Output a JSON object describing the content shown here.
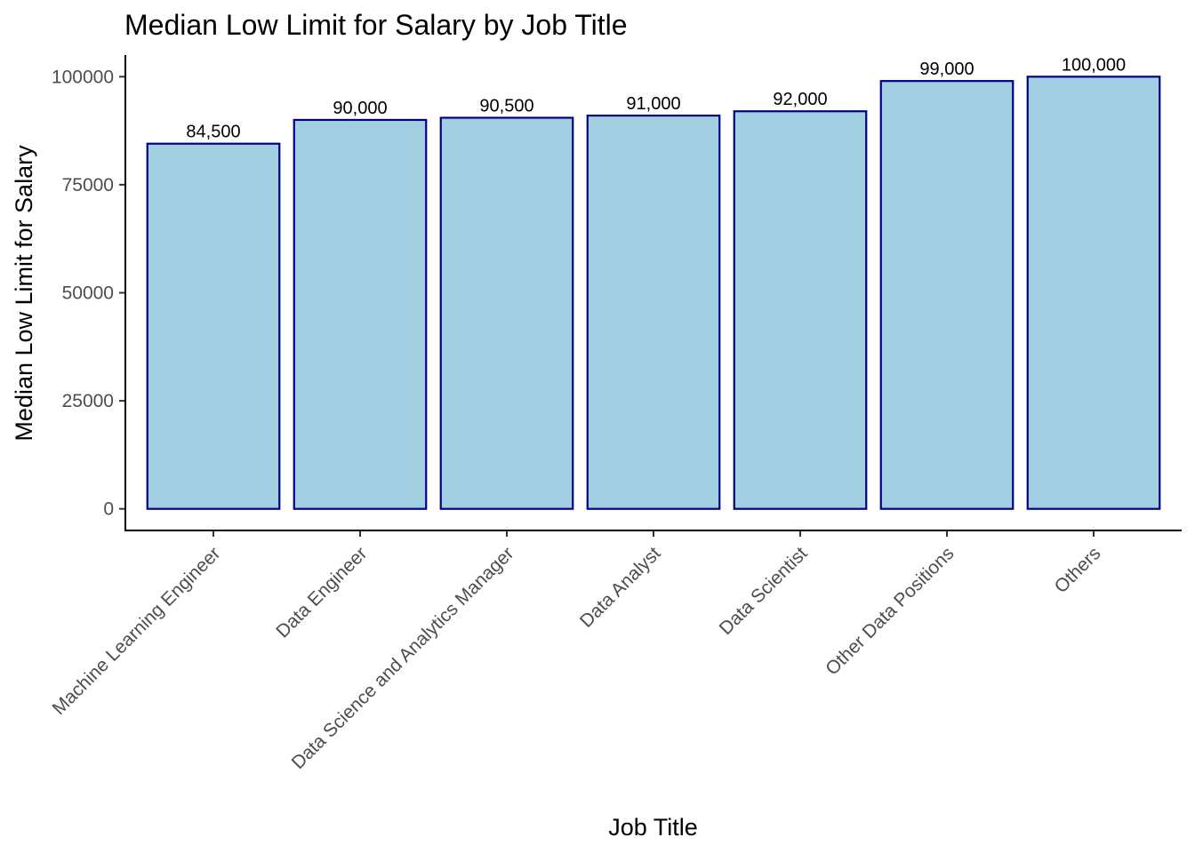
{
  "chart_data": {
    "type": "bar",
    "title": "Median Low Limit for Salary by Job Title",
    "xlabel": "Job Title",
    "ylabel": "Median Low Limit for Salary",
    "categories": [
      "Machine Learning Engineer",
      "Data Engineer",
      "Data Science and Analytics Manager",
      "Data Analyst",
      "Data Scientist",
      "Other Data Positions",
      "Others"
    ],
    "values": [
      84500,
      90000,
      90500,
      91000,
      92000,
      99000,
      100000
    ],
    "data_labels": [
      "84,500",
      "90,000",
      "90,500",
      "91,000",
      "92,000",
      "99,000",
      "100,000"
    ],
    "yticks": [
      0,
      25000,
      50000,
      75000,
      100000
    ],
    "ytick_labels": [
      "0",
      "25000",
      "50000",
      "75000",
      "100000"
    ],
    "ylim": [
      -5000,
      105000
    ],
    "grid": false,
    "legend": "none",
    "colors": {
      "bar_fill": "#a1cfe1",
      "bar_outline": "#000080",
      "axis": "#000000",
      "tick_label": "#4d4d4d"
    }
  }
}
